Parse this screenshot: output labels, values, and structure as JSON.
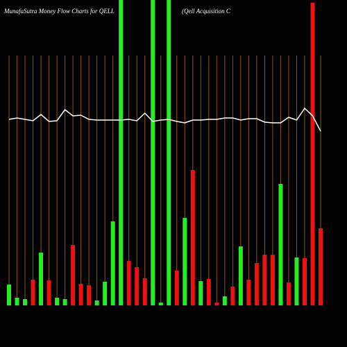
{
  "chart_data": {
    "type": "bar",
    "title": "MunafaSutra  Money Flow  Charts for QELL",
    "subtitle": "(Qell Acquisition  C",
    "categories": [
      null,
      null,
      null,
      null,
      null,
      null,
      null,
      null,
      null,
      null,
      null,
      null,
      null,
      null,
      null,
      null,
      null,
      null,
      null,
      null,
      null,
      null,
      null,
      null,
      null,
      null,
      null,
      null,
      null,
      null,
      null,
      null,
      null,
      null,
      null,
      null,
      null,
      null,
      null,
      null
    ],
    "series": [
      {
        "type": "bar",
        "values": [
          30,
          11,
          9,
          37,
          76,
          36,
          11,
          9,
          87,
          31,
          29,
          7,
          34,
          121,
          440,
          64,
          55,
          39,
          440,
          4,
          440,
          50,
          126,
          195,
          35,
          38,
          4,
          13,
          27,
          85,
          37,
          61,
          73,
          73,
          175,
          33,
          69,
          68,
          436,
          111
        ],
        "colors": [
          "#22ee22",
          "#22ee22",
          "#22ee22",
          "#ee1111",
          "#22ee22",
          "#ee1111",
          "#22ee22",
          "#22ee22",
          "#ee1111",
          "#ee1111",
          "#ee1111",
          "#22ee22",
          "#22ee22",
          "#22ee22",
          "#22ee22",
          "#ee1111",
          "#ee1111",
          "#ee1111",
          "#22ee22",
          "#22ee22",
          "#22ee22",
          "#ee1111",
          "#22ee22",
          "#ee1111",
          "#22ee22",
          "#ee1111",
          "#ee1111",
          "#22ee22",
          "#ee1111",
          "#22ee22",
          "#ee1111",
          "#ee1111",
          "#ee1111",
          "#ee1111",
          "#22ee22",
          "#ee1111",
          "#22ee22",
          "#ee1111",
          "#ee1111",
          "#ee1111"
        ]
      },
      {
        "type": "line",
        "color": "#ffffff",
        "values": [
          268,
          270,
          268,
          266,
          275,
          265,
          266,
          282,
          273,
          274,
          268,
          267,
          267,
          267,
          267,
          268,
          266,
          277,
          265,
          267,
          268,
          265,
          263,
          267,
          267,
          268,
          268,
          270,
          270,
          267,
          269,
          269,
          264,
          263,
          263,
          271,
          267,
          284,
          273,
          251
        ]
      }
    ],
    "ylim": [
      0,
      440
    ],
    "grid": true,
    "grid_color": "#8a5a10"
  }
}
